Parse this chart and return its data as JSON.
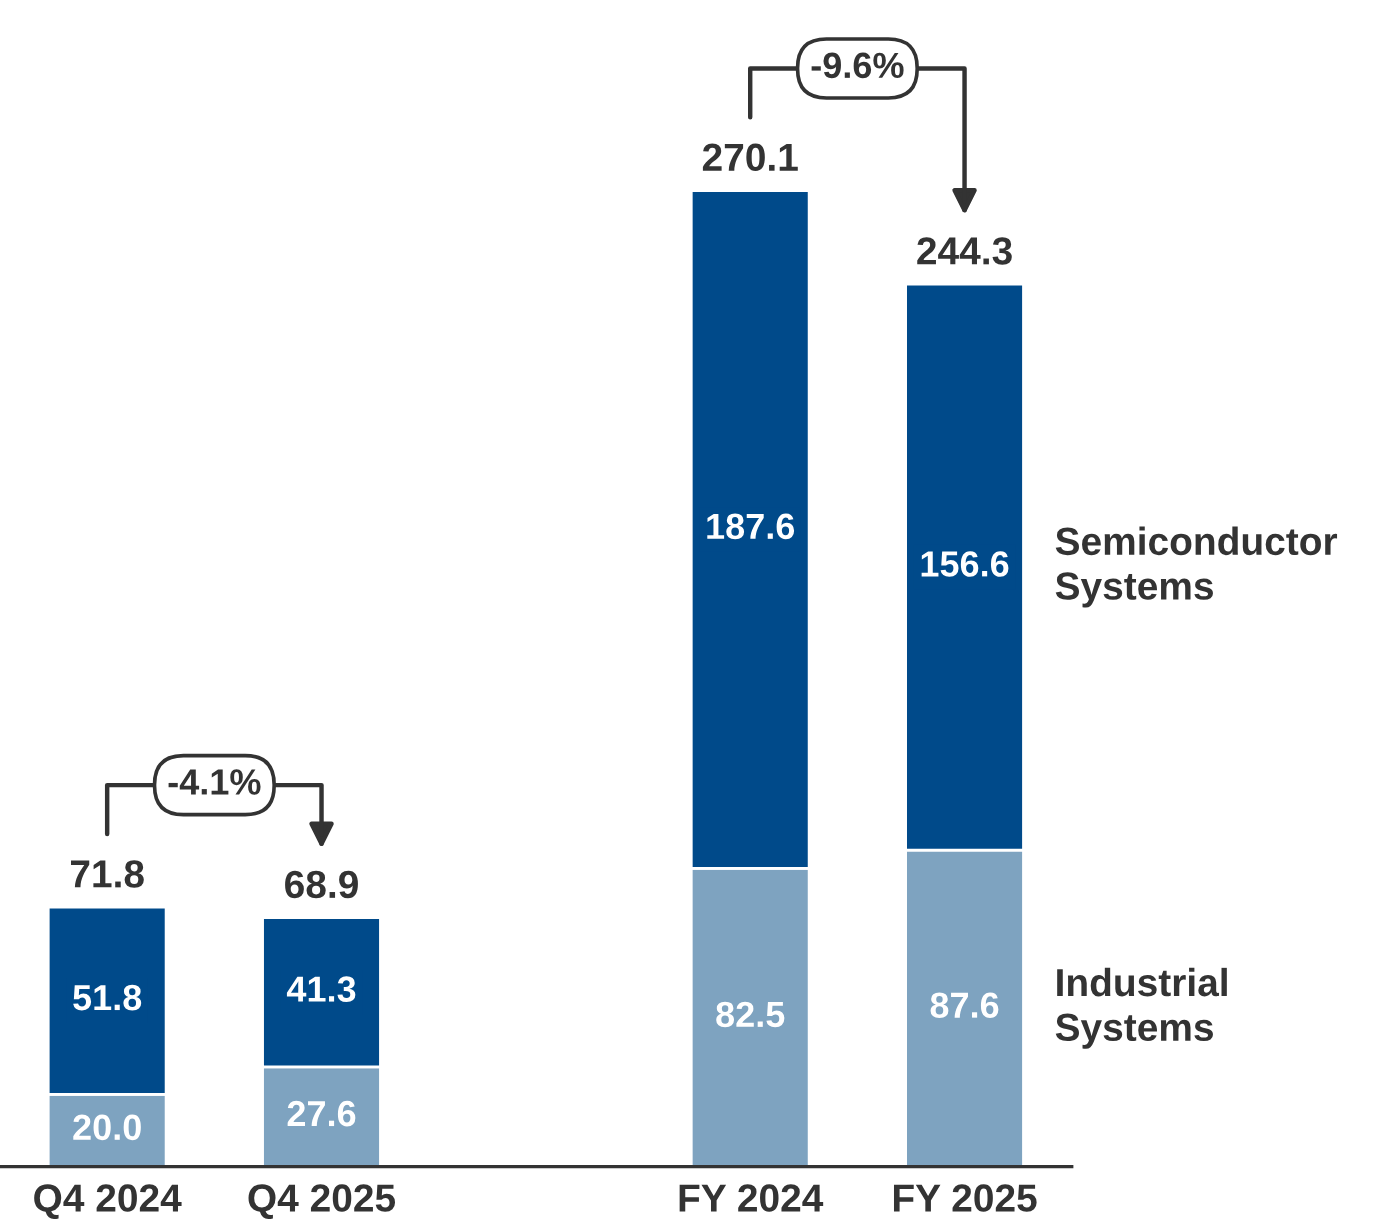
{
  "chart_data": {
    "type": "bar",
    "stacked": true,
    "categories": [
      "Q4 2024",
      "Q4 2025",
      null,
      "FY 2024",
      "FY 2025"
    ],
    "series": [
      {
        "name": "Industrial\nSystems",
        "color": "#7ea3c0",
        "values": [
          20.0,
          27.6,
          null,
          82.5,
          87.6
        ],
        "value_labels": [
          "20.0",
          "27.6",
          null,
          "82.5",
          "87.6"
        ]
      },
      {
        "name": "Semiconductor\nSystems",
        "color": "#004a8a",
        "values": [
          51.8,
          41.3,
          null,
          187.6,
          156.6
        ],
        "value_labels": [
          "51.8",
          "41.3",
          null,
          "187.6",
          "156.6"
        ]
      }
    ],
    "totals": [
      "71.8",
      "68.9",
      null,
      "270.1",
      "244.3"
    ],
    "annotations": [
      "-4.1%",
      "-9.6%"
    ]
  }
}
